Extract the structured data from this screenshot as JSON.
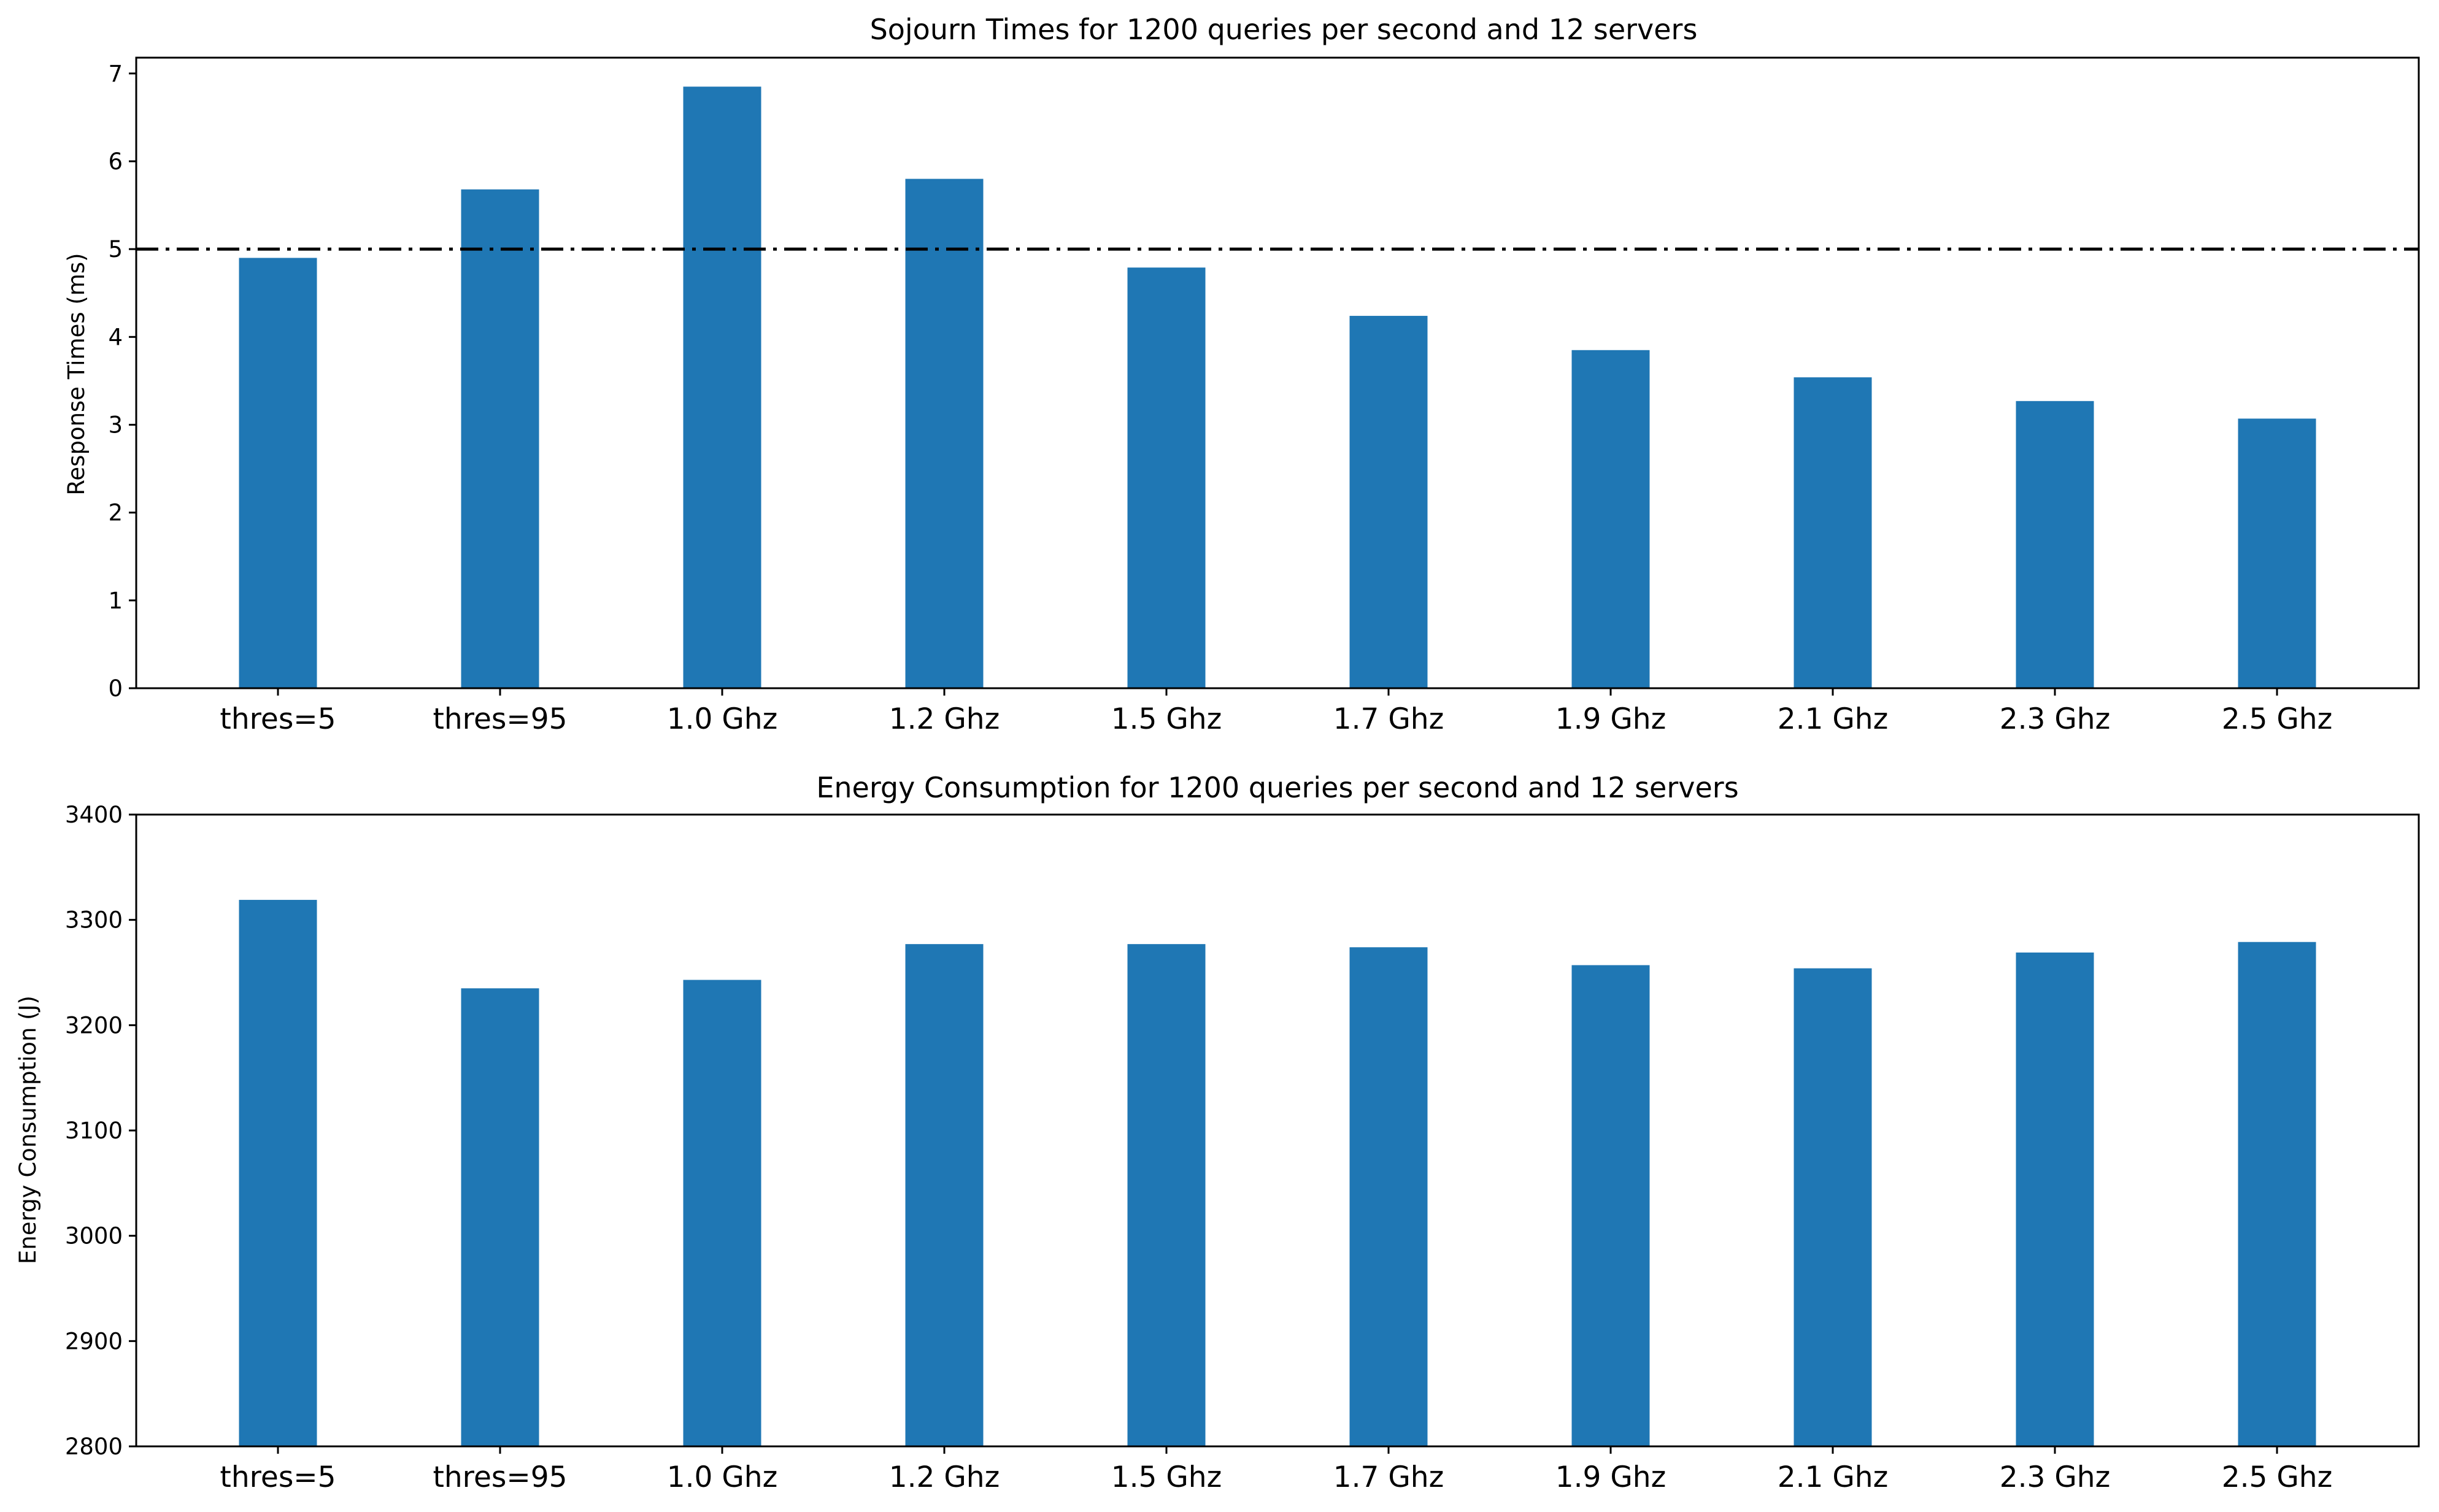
{
  "chart_data": [
    {
      "type": "bar",
      "title": "Sojourn Times for 1200 queries per second and 12 servers",
      "xlabel": "",
      "ylabel": "Response Times (ms)",
      "categories": [
        "thres=5",
        "thres=95",
        "1.0 Ghz",
        "1.2 Ghz",
        "1.5 Ghz",
        "1.7 Ghz",
        "1.9 Ghz",
        "2.1 Ghz",
        "2.3 Ghz",
        "2.5 Ghz"
      ],
      "values": [
        4.9,
        5.68,
        6.85,
        5.8,
        4.79,
        4.24,
        3.85,
        3.54,
        3.27,
        3.07
      ],
      "ylim": [
        0,
        7.18
      ],
      "yticks": [
        0,
        1,
        2,
        3,
        4,
        5,
        6,
        7
      ],
      "reference_line": {
        "y": 5,
        "style": "dashdot",
        "color": "#000000"
      },
      "bar_color": "#1f77b4",
      "grid": false,
      "legend": "none"
    },
    {
      "type": "bar",
      "title": "Energy Consumption for 1200 queries per second and 12 servers",
      "xlabel": "",
      "ylabel": "Energy Consumption (J)",
      "categories": [
        "thres=5",
        "thres=95",
        "1.0 Ghz",
        "1.2 Ghz",
        "1.5 Ghz",
        "1.7 Ghz",
        "1.9 Ghz",
        "2.1 Ghz",
        "2.3 Ghz",
        "2.5 Ghz"
      ],
      "values": [
        3319,
        3235,
        3243,
        3277,
        3277,
        3274,
        3257,
        3254,
        3269,
        3279
      ],
      "ylim": [
        2800,
        3400
      ],
      "yticks": [
        2800,
        2900,
        3000,
        3100,
        3200,
        3300,
        3400
      ],
      "bar_color": "#1f77b4",
      "grid": false,
      "legend": "none"
    }
  ]
}
